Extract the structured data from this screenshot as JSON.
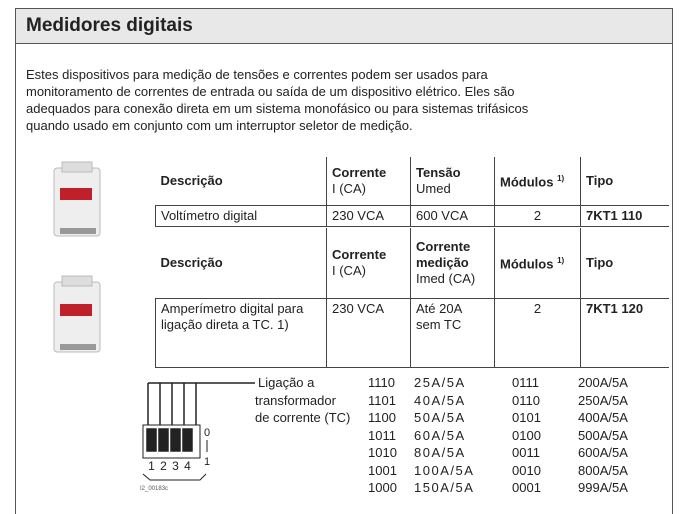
{
  "header": {
    "title": "Medidores digitais"
  },
  "intro_lines": [
    "Estes dispositivos para medição de tensões e correntes podem ser usados para",
    "monitoramento de correntes de entrada ou saída de um dispositivo elétrico. Eles são",
    "adequados para conexão direta em um sistema monofásico ou para sistemas trifásicos",
    "quando usado em conjunto com um interruptor seletor de medição."
  ],
  "tables": [
    {
      "headers": [
        {
          "title": "Descrição"
        },
        {
          "title": "Corrente",
          "subtitle": "I (CA)"
        },
        {
          "title": "Tensão",
          "subtitle": "Umed"
        },
        {
          "title": "Módulos",
          "note": "1)"
        },
        {
          "title": "Tipo"
        }
      ],
      "rows": [
        [
          "Voltímetro digital",
          "230 VCA",
          "600 VCA",
          "2",
          "7KT1 110"
        ]
      ]
    },
    {
      "headers": [
        {
          "title": "Descrição"
        },
        {
          "title": "Corrente",
          "subtitle": "I (CA)"
        },
        {
          "title": "Corrente medição",
          "subtitle": "Imed (CA)"
        },
        {
          "title": "Módulos",
          "note": "1)"
        },
        {
          "title": "Tipo"
        }
      ],
      "rows": [
        [
          "Amperímetro digital para ligação direta a TC. 1)",
          "230 VCA",
          "Até 20A sem TC",
          "2",
          "7KT1 120"
        ]
      ]
    }
  ],
  "wiring": {
    "label_lines": [
      "Ligação a",
      "transformador",
      "de corrente (TC)"
    ],
    "diagram": {
      "switch_numbers": [
        "1",
        "2",
        "3",
        "4"
      ],
      "off": "0",
      "on": "1",
      "code": "I2_00183c"
    },
    "codes": [
      [
        "1110",
        "25A/5A",
        "0111",
        "200A/5A"
      ],
      [
        "1101",
        "40A/5A",
        "0110",
        "250A/5A"
      ],
      [
        "1100",
        "50A/5A",
        "0101",
        "400A/5A"
      ],
      [
        "1011",
        "60A/5A",
        "0100",
        "500A/5A"
      ],
      [
        "1010",
        "80A/5A",
        "0011",
        "600A/5A"
      ],
      [
        "1001",
        "100A/5A",
        "0010",
        "800A/5A"
      ],
      [
        "1000",
        "150A/5A",
        "0001",
        "999A/5A"
      ]
    ]
  }
}
